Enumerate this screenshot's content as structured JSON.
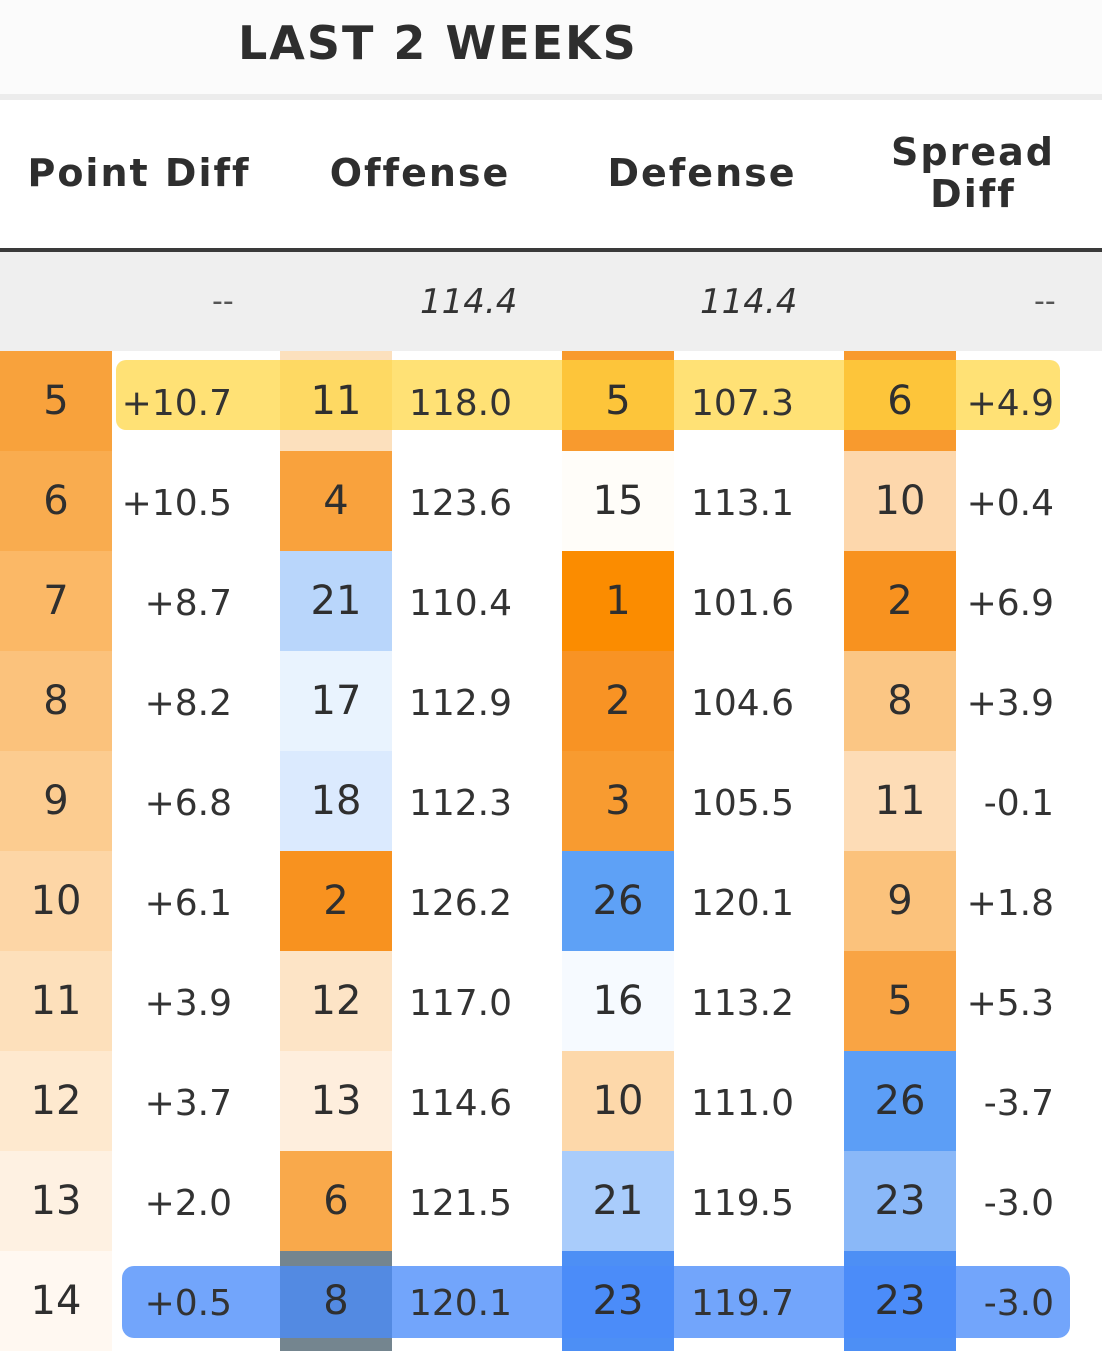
{
  "title": "LAST 2 WEEKS",
  "headers": {
    "point_diff": "Point Diff",
    "offense": "Offense",
    "defense": "Defense",
    "spread_line1": "Spread",
    "spread_line2": "Diff"
  },
  "averages": {
    "point_diff": "--",
    "offense": "114.4",
    "defense": "114.4",
    "spread": "--"
  },
  "rows": [
    {
      "pd_rank": "5",
      "pd": "+10.7",
      "off_rank": "11",
      "off": "118.0",
      "def_rank": "5",
      "def": "107.3",
      "sp_rank": "6",
      "sp": "+4.9"
    },
    {
      "pd_rank": "6",
      "pd": "+10.5",
      "off_rank": "4",
      "off": "123.6",
      "def_rank": "15",
      "def": "113.1",
      "sp_rank": "10",
      "sp": "+0.4"
    },
    {
      "pd_rank": "7",
      "pd": "+8.7",
      "off_rank": "21",
      "off": "110.4",
      "def_rank": "1",
      "def": "101.6",
      "sp_rank": "2",
      "sp": "+6.9"
    },
    {
      "pd_rank": "8",
      "pd": "+8.2",
      "off_rank": "17",
      "off": "112.9",
      "def_rank": "2",
      "def": "104.6",
      "sp_rank": "8",
      "sp": "+3.9"
    },
    {
      "pd_rank": "9",
      "pd": "+6.8",
      "off_rank": "18",
      "off": "112.3",
      "def_rank": "3",
      "def": "105.5",
      "sp_rank": "11",
      "sp": "-0.1"
    },
    {
      "pd_rank": "10",
      "pd": "+6.1",
      "off_rank": "2",
      "off": "126.2",
      "def_rank": "26",
      "def": "120.1",
      "sp_rank": "9",
      "sp": "+1.8"
    },
    {
      "pd_rank": "11",
      "pd": "+3.9",
      "off_rank": "12",
      "off": "117.0",
      "def_rank": "16",
      "def": "113.2",
      "sp_rank": "5",
      "sp": "+5.3"
    },
    {
      "pd_rank": "12",
      "pd": "+3.7",
      "off_rank": "13",
      "off": "114.6",
      "def_rank": "10",
      "def": "111.0",
      "sp_rank": "26",
      "sp": "-3.7"
    },
    {
      "pd_rank": "13",
      "pd": "+2.0",
      "off_rank": "6",
      "off": "121.5",
      "def_rank": "21",
      "def": "119.5",
      "sp_rank": "23",
      "sp": "-3.0"
    },
    {
      "pd_rank": "14",
      "pd": "+0.5",
      "off_rank": "8",
      "off": "120.1",
      "def_rank": "23",
      "def": "119.7",
      "sp_rank": "23",
      "sp": "-3.0"
    }
  ],
  "rank_colors": {
    "pd_rank": [
      "#f8a23c",
      "#f9ac4f",
      "#fbb866",
      "#fbc27c",
      "#fccc90",
      "#fdd6a6",
      "#fde0bb",
      "#fee9cf",
      "#fef1e2",
      "#fff8f1"
    ],
    "off_rank": [
      "#fce0bd",
      "#f9a23d",
      "#b9d6fb",
      "#e9f3fe",
      "#dbeafe",
      "#f8921f",
      "#fde4c6",
      "#feeedd",
      "#f9a94b",
      "#74858f"
    ],
    "def_rank": [
      "#f89a2e",
      "#fffdf9",
      "#fb8c00",
      "#f89324",
      "#f89b30",
      "#5ea1f6",
      "#f6faff",
      "#fdd8aa",
      "#a9ccfb",
      "#4d8ff5"
    ],
    "sp_rank": [
      "#f89a2e",
      "#fdd7ac",
      "#f8921f",
      "#fbc684",
      "#fddcb6",
      "#fbc27c",
      "#f9a444",
      "#5c9ef6",
      "#8ab8f8",
      "#4d8ff5"
    ]
  },
  "highlights": {
    "first_row": "#ffd540",
    "last_row": "#4a8cfa"
  }
}
